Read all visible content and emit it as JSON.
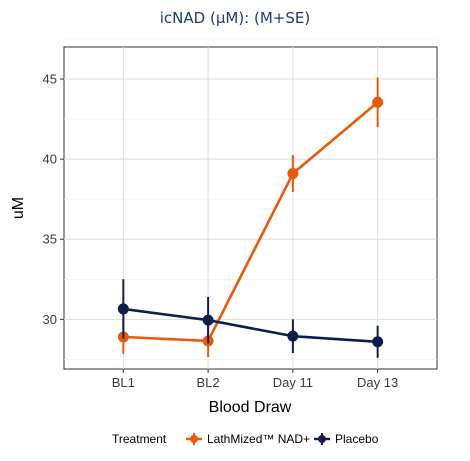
{
  "chart_data": {
    "type": "line",
    "title": "icNAD (μM): (M+SE)",
    "xlabel": "Blood Draw",
    "ylabel": "uM",
    "categories": [
      "BL1",
      "BL2",
      "Day 11",
      "Day 13"
    ],
    "ylim": [
      26.9,
      47.0
    ],
    "yticks": [
      30,
      35,
      40,
      45
    ],
    "grid": true,
    "legend": {
      "position": "bottom",
      "title": "Treatment"
    },
    "series": [
      {
        "name": "LathMized™ NAD+",
        "color": "#e8590c",
        "values": [
          28.9,
          28.65,
          39.1,
          43.55
        ],
        "error": [
          1.05,
          1.0,
          1.15,
          1.55
        ]
      },
      {
        "name": "Placebo",
        "color": "#0f1f4b",
        "values": [
          30.65,
          29.95,
          28.95,
          28.6
        ],
        "error": [
          1.85,
          1.45,
          1.05,
          1.0
        ]
      }
    ]
  }
}
